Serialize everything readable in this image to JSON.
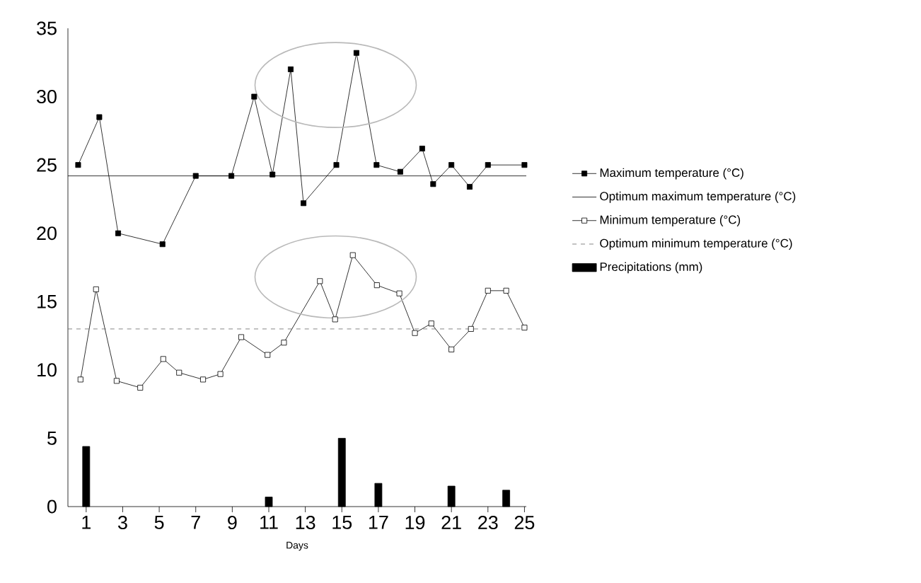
{
  "chart_data": {
    "type": "line",
    "xlabel": "Days",
    "xlim": [
      0,
      25.1
    ],
    "xticks": [
      1,
      3,
      5,
      7,
      9,
      11,
      13,
      15,
      17,
      19,
      21,
      23,
      25
    ],
    "ylim": [
      0,
      35
    ],
    "yticks": [
      0,
      5,
      10,
      15,
      20,
      25,
      30,
      35
    ],
    "grid": false,
    "legend": "right",
    "series": [
      {
        "name": "Maximum temperature (°C)",
        "color": "#000000",
        "marker": "square",
        "x": [
          0.56,
          1.72,
          2.75,
          5.18,
          7.0,
          8.95,
          10.2,
          11.2,
          12.2,
          12.9,
          14.7,
          15.8,
          16.9,
          18.2,
          19.4,
          20.0,
          21.0,
          22.0,
          23.0,
          25.0
        ],
        "values": [
          25.0,
          28.5,
          20.0,
          19.2,
          24.2,
          24.2,
          30.0,
          24.3,
          32.0,
          22.2,
          25.0,
          33.2,
          25.0,
          24.5,
          26.2,
          23.6,
          25.0,
          23.4,
          25.0,
          25.0
        ]
      },
      {
        "name": "Minimum temperature (°C)",
        "color": "#000000",
        "marker": "square",
        "x": [
          0.69,
          1.54,
          2.67,
          3.96,
          5.22,
          6.09,
          7.4,
          8.35,
          9.49,
          10.93,
          11.83,
          13.8,
          14.63,
          15.6,
          16.92,
          18.15,
          19.0,
          19.9,
          21.0,
          22.07,
          23.0,
          24.0,
          25.0
        ],
        "values": [
          9.3,
          15.9,
          9.2,
          8.7,
          10.8,
          9.8,
          9.3,
          9.7,
          12.4,
          11.1,
          12.0,
          16.5,
          13.7,
          18.4,
          16.2,
          15.6,
          12.7,
          13.4,
          11.5,
          13.0,
          15.8,
          15.8,
          13.1
        ]
      },
      {
        "name": "Precipitations (mm)",
        "type": "bar",
        "color": "#000000",
        "x": [
          1,
          11,
          15,
          17,
          21,
          24
        ],
        "values": [
          4.4,
          0.7,
          5.0,
          1.7,
          1.5,
          1.2
        ]
      }
    ],
    "ref_lines": [
      {
        "axis": "y",
        "value": 24.2,
        "label": "Optimum maximum temperature (°C)",
        "color": "#000000",
        "line_style": "solid"
      },
      {
        "axis": "y",
        "value": 13.0,
        "label": "Optimum minimum temperature (°C)",
        "color": "#666666",
        "line_style": "dashed"
      }
    ]
  }
}
